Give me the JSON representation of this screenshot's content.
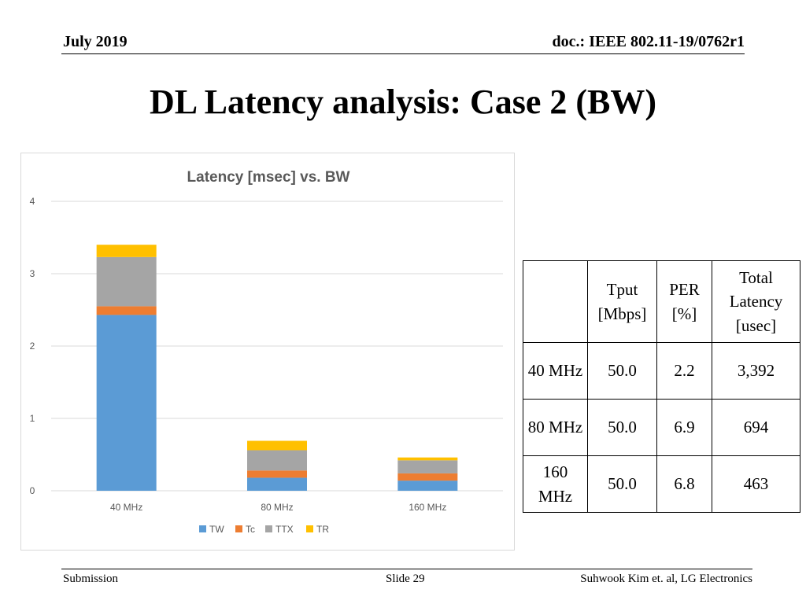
{
  "header": {
    "date": "July 2019",
    "doc": "doc.: IEEE 802.11-19/0762r1"
  },
  "slide_title": "DL Latency analysis: Case 2 (BW)",
  "chart_data": {
    "type": "bar",
    "stacked": true,
    "title": "Latency [msec] vs. BW",
    "categories": [
      "40 MHz",
      "80 MHz",
      "160 MHz"
    ],
    "series": [
      {
        "name": "TW",
        "color": "#5b9bd5",
        "values": [
          2.43,
          0.18,
          0.14
        ]
      },
      {
        "name": "Tc",
        "color": "#ed7d31",
        "values": [
          0.12,
          0.1,
          0.1
        ]
      },
      {
        "name": "TTX",
        "color": "#a5a5a5",
        "values": [
          0.68,
          0.28,
          0.18
        ]
      },
      {
        "name": "TR",
        "color": "#ffc000",
        "values": [
          0.17,
          0.13,
          0.04
        ]
      }
    ],
    "ylim": [
      0,
      4
    ],
    "yticks": [
      "0",
      "1",
      "2",
      "3",
      "4"
    ],
    "grid": true,
    "legend": "bottom"
  },
  "table": {
    "headers": [
      "",
      "Tput [Mbps]",
      "PER [%]",
      "Total Latency [usec]"
    ],
    "rows": [
      {
        "bw": "40 MHz",
        "tput": "50.0",
        "per": "2.2",
        "latency": "3,392"
      },
      {
        "bw": "80 MHz",
        "tput": "50.0",
        "per": "6.9",
        "latency": "694"
      },
      {
        "bw": "160 MHz",
        "tput": "50.0",
        "per": "6.8",
        "latency": "463"
      }
    ]
  },
  "footer": {
    "left": "Submission",
    "center": "Slide 29",
    "right": "Suhwook Kim et. al, LG Electronics"
  }
}
